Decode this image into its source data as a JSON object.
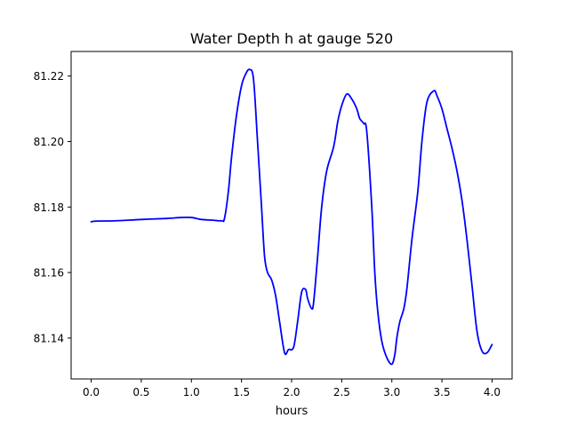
{
  "chart_data": {
    "type": "line",
    "title": "Water Depth h at gauge 520",
    "xlabel": "hours",
    "ylabel": "",
    "xlim": [
      -0.2,
      4.2
    ],
    "ylim": [
      81.1275,
      81.2275
    ],
    "xticks": [
      0.0,
      0.5,
      1.0,
      1.5,
      2.0,
      2.5,
      3.0,
      3.5,
      4.0
    ],
    "xtick_labels": [
      "0.0",
      "0.5",
      "1.0",
      "1.5",
      "2.0",
      "2.5",
      "3.0",
      "3.5",
      "4.0"
    ],
    "yticks": [
      81.14,
      81.16,
      81.18,
      81.2,
      81.22
    ],
    "ytick_labels": [
      "81.14",
      "81.16",
      "81.18",
      "81.20",
      "81.22"
    ],
    "grid": false,
    "legend": "none",
    "series": [
      {
        "color": "#0000ff",
        "x": [
          0.0,
          0.05,
          0.25,
          0.5,
          0.75,
          0.9,
          1.0,
          1.1,
          1.2,
          1.3,
          1.33,
          1.37,
          1.4,
          1.45,
          1.5,
          1.54,
          1.58,
          1.62,
          1.66,
          1.7,
          1.73,
          1.76,
          1.8,
          1.84,
          1.88,
          1.93,
          1.97,
          2.02,
          2.06,
          2.1,
          2.14,
          2.16,
          2.2,
          2.22,
          2.26,
          2.3,
          2.35,
          2.42,
          2.46,
          2.5,
          2.55,
          2.6,
          2.65,
          2.68,
          2.72,
          2.75,
          2.8,
          2.83,
          2.86,
          2.9,
          2.95,
          3.0,
          3.03,
          3.05,
          3.08,
          3.12,
          3.15,
          3.2,
          3.26,
          3.3,
          3.35,
          3.42,
          3.45,
          3.5,
          3.55,
          3.6,
          3.65,
          3.7,
          3.75,
          3.8,
          3.85,
          3.9,
          3.95,
          4.0
        ],
        "y": [
          81.1755,
          81.1757,
          81.1758,
          81.1762,
          81.1765,
          81.1768,
          81.1768,
          81.1762,
          81.176,
          81.1758,
          81.1765,
          81.185,
          81.195,
          81.208,
          81.217,
          81.2205,
          81.222,
          81.219,
          81.2,
          81.18,
          81.165,
          81.16,
          81.1578,
          81.153,
          81.145,
          81.1355,
          81.1365,
          81.1372,
          81.145,
          81.154,
          81.1548,
          81.152,
          81.149,
          81.151,
          81.165,
          81.18,
          81.191,
          81.1985,
          81.206,
          81.211,
          81.2145,
          81.213,
          81.21,
          81.207,
          81.2055,
          81.203,
          81.18,
          81.16,
          81.148,
          81.139,
          81.134,
          81.132,
          81.135,
          81.14,
          81.145,
          81.149,
          81.155,
          81.17,
          81.185,
          81.2,
          81.212,
          81.2155,
          81.214,
          81.21,
          81.204,
          81.198,
          81.191,
          81.182,
          81.17,
          81.156,
          81.142,
          81.136,
          81.1355,
          81.138
        ]
      }
    ]
  }
}
